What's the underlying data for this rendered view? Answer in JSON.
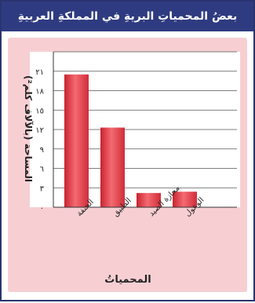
{
  "chart_data": {
    "type": "bar",
    "title": "بعضُ المحمياتِ البريةِ في المملكةِ العربيةِ السعودية",
    "xlabel": "المحمياتُ",
    "ylabel": "المساحة (بالآلاف كلم²)",
    "categories": [
      "الخنفة",
      "الطبيق",
      "محازة الصيد",
      "الوعول"
    ],
    "values": [
      20.5,
      12.3,
      2.2,
      2.4
    ],
    "yticks": [
      0,
      3,
      6,
      9,
      12,
      15,
      18,
      21
    ],
    "ytick_labels": [
      "٠",
      "٣",
      "٦",
      "٩",
      "١٢",
      "١٥",
      "١٨",
      "٢١"
    ],
    "ylim": [
      0,
      24
    ],
    "grid": true,
    "bar_color": "#e8424e"
  }
}
